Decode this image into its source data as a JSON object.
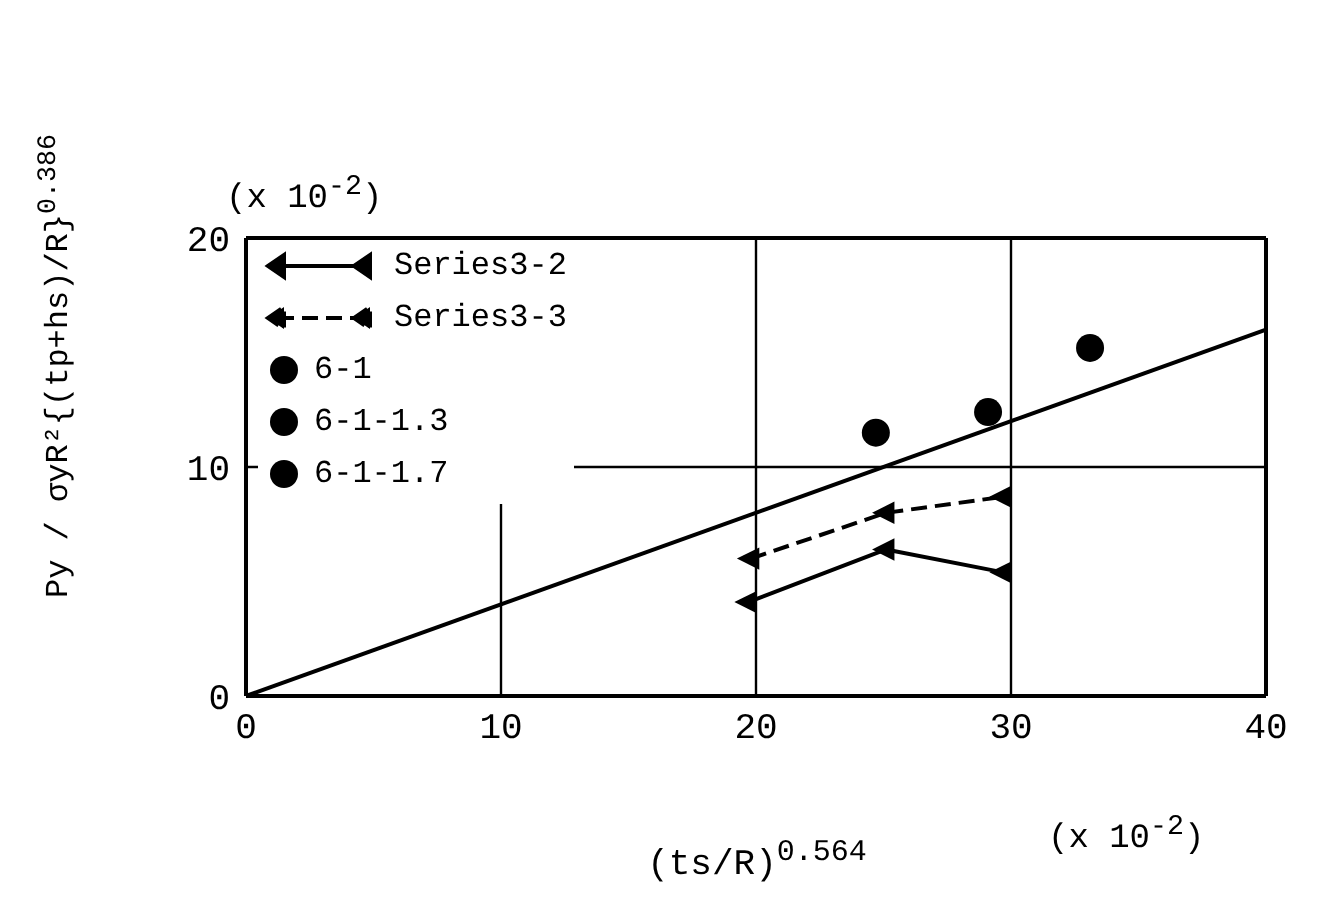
{
  "chart_data": {
    "type": "scatter",
    "xlabel": "(ts/R)$^{0.564}$",
    "ylabel": "Py / σyR²{(tp+hs)/R}$^{0.386}$",
    "annotations": [
      "(x 10$^{-2}$)",
      "(x 10$^{-2}$)"
    ],
    "xlim": [
      0,
      40
    ],
    "xticks": [
      0,
      10,
      20,
      30,
      40
    ],
    "ylim": [
      0,
      20
    ],
    "yticks": [
      0,
      10,
      20
    ],
    "grid": true,
    "legend": "top left",
    "series": [
      {
        "name": "Series3-2",
        "type": "line",
        "color": "#000000",
        "marker": "triangle",
        "line_style": "solid",
        "x": [
          19.7,
          25.1,
          29.7
        ],
        "values": [
          4.1,
          6.4,
          5.4
        ]
      },
      {
        "name": "Series3-3",
        "type": "line",
        "color": "#000000",
        "marker": "triangle",
        "line_style": "dashed",
        "x": [
          19.8,
          25.1,
          29.7
        ],
        "values": [
          6.0,
          8.0,
          8.7
        ]
      },
      {
        "name": "6-1",
        "color": "#000000",
        "marker": "circle",
        "x": [
          24.7
        ],
        "values": [
          11.5
        ]
      },
      {
        "name": "6-1-1.3",
        "color": "#000000",
        "marker": "circle",
        "x": [
          29.1
        ],
        "values": [
          12.4
        ]
      },
      {
        "name": "6-1-1.7",
        "color": "#000000",
        "marker": "circle",
        "x": [
          33.1
        ],
        "values": [
          15.2
        ]
      },
      {
        "type": "line",
        "color": "#000000",
        "marker": "none",
        "line_style": "solid",
        "x": [
          0,
          40
        ],
        "values": [
          0,
          16
        ]
      }
    ]
  }
}
